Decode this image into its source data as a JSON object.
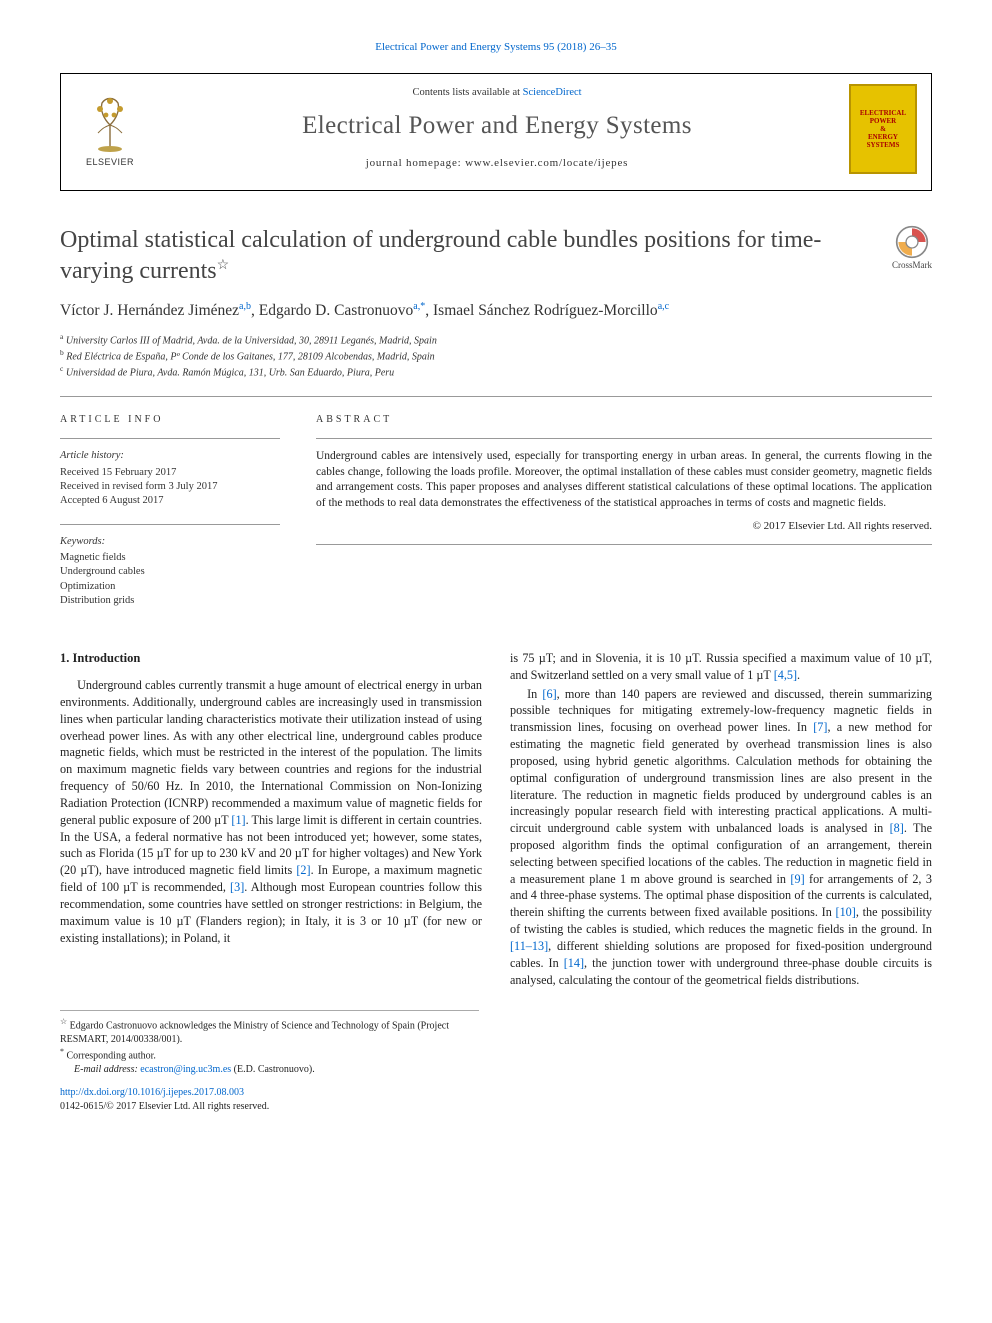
{
  "top_link": "Electrical Power and Energy Systems 95 (2018) 26–35",
  "masthead": {
    "contents_prefix": "Contents lists available at ",
    "contents_link": "ScienceDirect",
    "journal_title": "Electrical Power and Energy Systems",
    "homepage_label": "journal homepage: www.elsevier.com/locate/ijepes",
    "elsevier_wordmark": "ELSEVIER",
    "cover_lines": [
      "ELECTRICAL",
      "POWER",
      "&",
      "ENERGY",
      "SYSTEMS"
    ]
  },
  "crossmark_label": "CrossMark",
  "article": {
    "title": "Optimal statistical calculation of underground cable bundles positions for time-varying currents",
    "title_note_marker": "☆",
    "authors_html": [
      {
        "name": "Víctor J. Hernández Jiménez",
        "sup": "a,b"
      },
      {
        "name": "Edgardo D. Castronuovo",
        "sup": "a,*"
      },
      {
        "name": "Ismael Sánchez Rodríguez-Morcillo",
        "sup": "a,c"
      }
    ],
    "affiliations": [
      {
        "marker": "a",
        "text": "University Carlos III of Madrid, Avda. de la Universidad, 30, 28911 Leganés, Madrid, Spain"
      },
      {
        "marker": "b",
        "text": "Red Eléctrica de España, Pº Conde de los Gaitanes, 177, 28109 Alcobendas, Madrid, Spain"
      },
      {
        "marker": "c",
        "text": "Universidad de Piura, Avda. Ramón Múgica, 131, Urb. San Eduardo, Piura, Peru"
      }
    ]
  },
  "info": {
    "heading": "ARTICLE INFO",
    "history_label": "Article history:",
    "history": [
      "Received 15 February 2017",
      "Received in revised form 3 July 2017",
      "Accepted 6 August 2017"
    ],
    "keywords_label": "Keywords:",
    "keywords": [
      "Magnetic fields",
      "Underground cables",
      "Optimization",
      "Distribution grids"
    ]
  },
  "abstract": {
    "heading": "ABSTRACT",
    "text": "Underground cables are intensively used, especially for transporting energy in urban areas. In general, the currents flowing in the cables change, following the loads profile. Moreover, the optimal installation of these cables must consider geometry, magnetic fields and arrangement costs. This paper proposes and analyses different statistical calculations of these optimal locations. The application of the methods to real data demonstrates the effectiveness of the statistical approaches in terms of costs and magnetic fields.",
    "copyright": "© 2017 Elsevier Ltd. All rights reserved."
  },
  "body": {
    "section_heading": "1. Introduction",
    "col1": [
      "Underground cables currently transmit a huge amount of electrical energy in urban environments. Additionally, underground cables are increasingly used in transmission lines when particular landing characteristics motivate their utilization instead of using overhead power lines. As with any other electrical line, underground cables produce magnetic fields, which must be restricted in the interest of the population. The limits on maximum magnetic fields vary between countries and regions for the industrial frequency of 50/60 Hz. In 2010, the International Commission on Non-Ionizing Radiation Protection (ICNRP) recommended a maximum value of magnetic fields for general public exposure of 200 µT [1]. This large limit is different in certain countries. In the USA, a federal normative has not been introduced yet; however, some states, such as Florida (15 µT for up to 230 kV and 20 µT for higher voltages) and New York (20 µT), have introduced magnetic field limits [2]. In Europe, a maximum magnetic field of 100 µT is recommended, [3]. Although most European countries follow this recommendation, some countries have settled on stronger restrictions: in Belgium, the maximum value is 10 µT (Flanders region); in Italy, it is 3 or 10 µT (for new or existing installations); in Poland, it"
    ],
    "col2": [
      "is 75 µT; and in Slovenia, it is 10 µT. Russia specified a maximum value of 10 µT, and Switzerland settled on a very small value of 1 µT [4,5].",
      "In [6], more than 140 papers are reviewed and discussed, therein summarizing possible techniques for mitigating extremely-low-frequency magnetic fields in transmission lines, focusing on overhead power lines. In [7], a new method for estimating the magnetic field generated by overhead transmission lines is also proposed, using hybrid genetic algorithms. Calculation methods for obtaining the optimal configuration of underground transmission lines are also present in the literature. The reduction in magnetic fields produced by underground cables is an increasingly popular research field with interesting practical applications. A multi-circuit underground cable system with unbalanced loads is analysed in [8]. The proposed algorithm finds the optimal configuration of an arrangement, therein selecting between specified locations of the cables. The reduction in magnetic field in a measurement plane 1 m above ground is searched in [9] for arrangements of 2, 3 and 4 three-phase systems. The optimal phase disposition of the currents is calculated, therein shifting the currents between fixed available positions. In [10], the possibility of twisting the cables is studied, which reduces the magnetic fields in the ground. In [11–13], different shielding solutions are proposed for fixed-position underground cables. In [14], the junction tower with underground three-phase double circuits is analysed, calculating the contour of the geometrical fields distributions."
    ],
    "refs_col1": [
      "[1]",
      "[2]",
      "[3]"
    ],
    "refs_col2": [
      "[4,5]",
      "[6]",
      "[7]",
      "[8]",
      "[9]",
      "[10]",
      "[11–13]",
      "[14]"
    ]
  },
  "footnotes": {
    "star": "Edgardo Castronuovo acknowledges the Ministry of Science and Technology of Spain (Project RESMART, 2014/00338/001).",
    "corresponding": "Corresponding author.",
    "email_label": "E-mail address:",
    "email": "ecastron@ing.uc3m.es",
    "email_paren": "(E.D. Castronuovo)."
  },
  "doi": {
    "link": "http://dx.doi.org/10.1016/j.ijepes.2017.08.003",
    "issn_line": "0142-0615/© 2017 Elsevier Ltd. All rights reserved."
  },
  "colors": {
    "link": "#0066cc",
    "cover_bg": "#e6c200",
    "cover_border": "#b89400",
    "cover_text": "#a00000"
  }
}
